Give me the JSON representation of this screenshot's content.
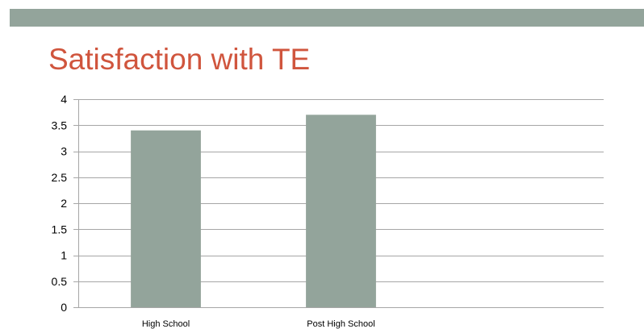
{
  "slide": {
    "title": "Satisfaction with TE"
  },
  "colors": {
    "band": "#93a49b",
    "title": "#d0553d",
    "bar": "#93a49b",
    "gridline": "#a6a6a6"
  },
  "chart_data": {
    "type": "bar",
    "title": "",
    "xlabel": "",
    "ylabel": "",
    "categories": [
      "High School",
      "Post High School",
      ""
    ],
    "values": [
      3.4,
      3.7,
      null
    ],
    "ylim": [
      0,
      4
    ],
    "yticks": [
      "0",
      "0.5",
      "1",
      "1.5",
      "2",
      "2.5",
      "3",
      "3.5",
      "4"
    ],
    "grid": true,
    "legend": "none"
  }
}
